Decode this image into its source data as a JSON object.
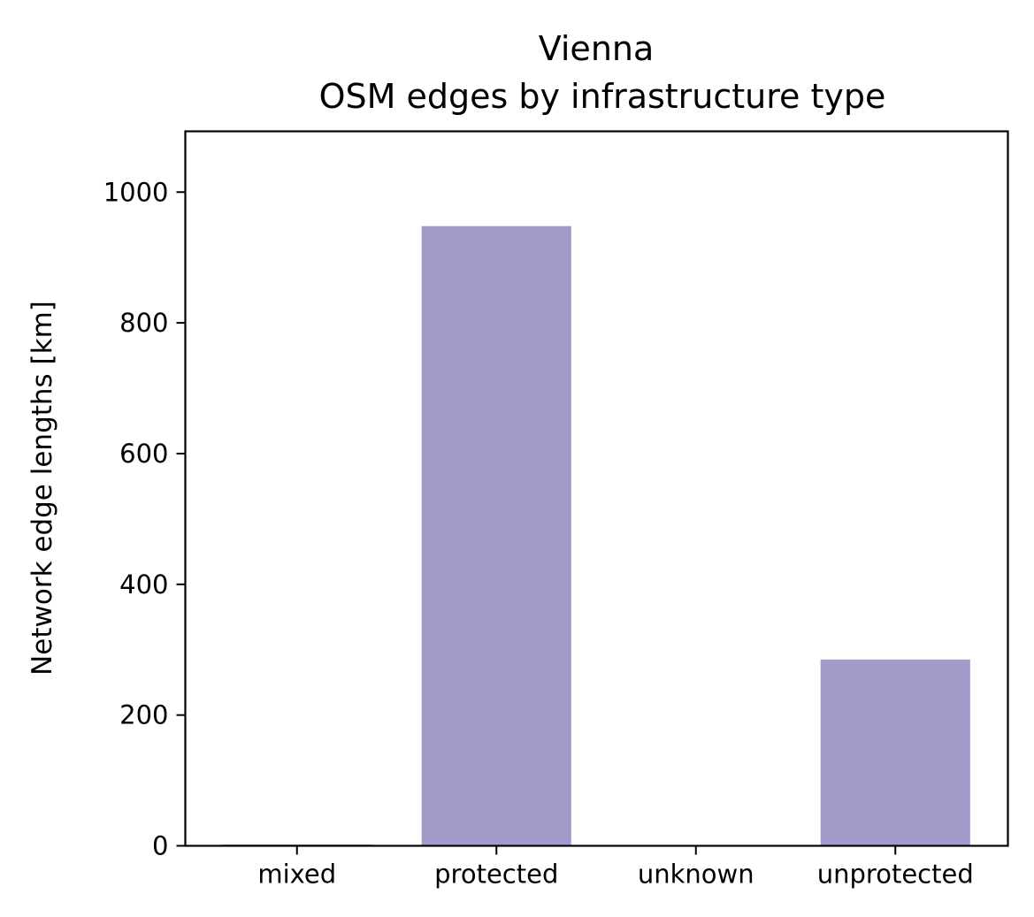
{
  "chart_data": {
    "type": "bar",
    "title": "Vienna",
    "subtitle": "OSM edges by infrastructure type",
    "xlabel": "",
    "ylabel": "Network edge lengths [km]",
    "categories": [
      "mixed",
      "protected",
      "unknown",
      "unprotected"
    ],
    "values": [
      2,
      948,
      0,
      285
    ],
    "ylim": [
      0,
      1093
    ],
    "yticks": [
      0,
      200,
      400,
      600,
      800,
      1000
    ],
    "bar_color": "#a29bca",
    "grid": false,
    "legend": "none"
  }
}
